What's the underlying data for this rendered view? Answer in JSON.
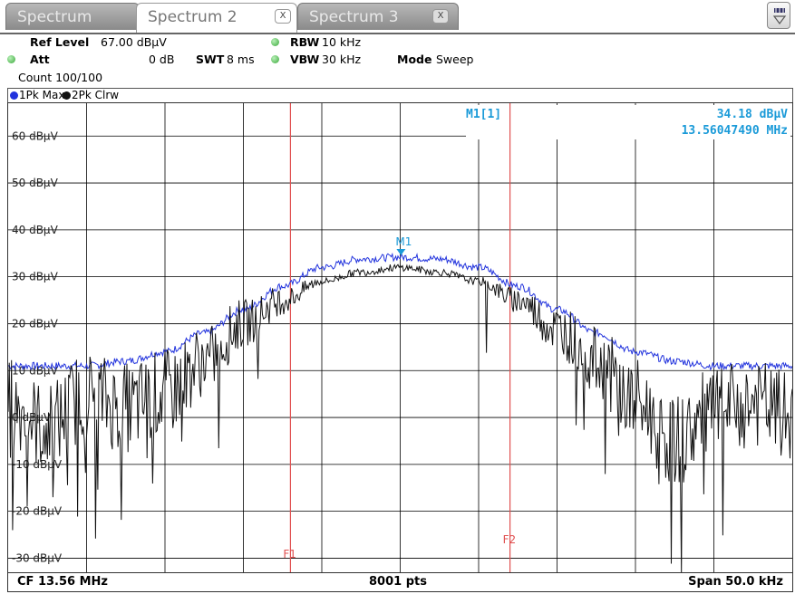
{
  "tabs": [
    {
      "label": "Spectrum",
      "active": false
    },
    {
      "label": "Spectrum 2",
      "active": true,
      "close": "X"
    },
    {
      "label": "Spectrum 3",
      "active": false,
      "close": "X"
    }
  ],
  "settings": {
    "ref_level_label": "Ref Level",
    "ref_level_value": "67.00 dBµV",
    "att_label": "Att",
    "att_value": "0 dB",
    "swt_label": "SWT",
    "swt_value": "8 ms",
    "rbw_label": "RBW",
    "rbw_value": "10 kHz",
    "vbw_label": "VBW",
    "vbw_value": "30 kHz",
    "mode_label": "Mode",
    "mode_value": "Sweep",
    "count": "Count 100/100"
  },
  "trace_legend": [
    {
      "label": "1Pk Max",
      "color": "#2233dd"
    },
    {
      "label": "2Pk Clrw",
      "color": "#111111"
    }
  ],
  "marker_readout": {
    "name": "M1[1]",
    "level": "34.18 dBµV",
    "frequency": "13.56047490 MHz"
  },
  "marker": {
    "label": "M1",
    "x_khz": 0.05,
    "y": 34.18,
    "color": "#1a9ad8"
  },
  "lines": [
    {
      "label": "F1",
      "x_khz": -7.0,
      "color": "#e05050"
    },
    {
      "label": "F2",
      "x_khz": 7.0,
      "color": "#e05050"
    }
  ],
  "footer": {
    "center_freq": "CF 13.56 MHz",
    "points": "8001 pts",
    "span": "Span 50.0 kHz"
  },
  "chart_data": {
    "type": "line",
    "y_ticks": [
      "60 dBµV",
      "50 dBµV",
      "40 dBµV",
      "30 dBµV",
      "20 dBµV",
      "10 dBµV",
      "0 dBµV",
      "-10 dBµV",
      "-20 dBµV",
      "-30 dBµV"
    ],
    "y_tick_values": [
      60,
      50,
      40,
      30,
      20,
      10,
      0,
      -10,
      -20,
      -30
    ],
    "ylim": [
      -33,
      67
    ],
    "xlim_khz": [
      -25,
      25
    ],
    "grid": true,
    "series": [
      {
        "name": "1Pk Max",
        "color": "#2233dd",
        "x_khz": [
          -25,
          -20,
          -17.5,
          -15,
          -12.5,
          -10,
          -7.5,
          -5,
          -2.5,
          0,
          2.5,
          5,
          7.5,
          10,
          12.5,
          15,
          17.5,
          20,
          25
        ],
        "values": [
          11,
          11,
          12,
          14,
          18,
          23,
          28,
          32,
          33.8,
          34.2,
          33.8,
          32,
          28,
          23,
          18,
          14,
          12,
          11,
          11
        ]
      },
      {
        "name": "2Pk Clrw",
        "color": "#111111",
        "x_khz": [
          -25,
          -22.5,
          -20,
          -17.5,
          -15,
          -12.5,
          -10,
          -7.5,
          -5,
          -2.5,
          0,
          2.5,
          5,
          7.5,
          10,
          12.5,
          15,
          17.5,
          20,
          22.5,
          25
        ],
        "values": [
          3,
          -2,
          5,
          2,
          5,
          12,
          20,
          25,
          29,
          31,
          32,
          31,
          29,
          25,
          19,
          12,
          3,
          -5,
          1,
          3,
          0
        ]
      }
    ]
  }
}
